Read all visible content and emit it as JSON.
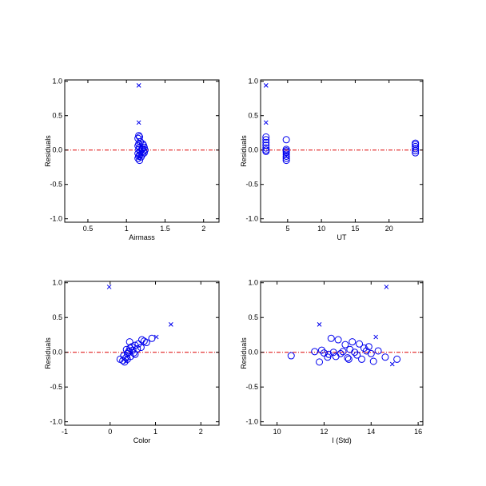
{
  "colors": {
    "marker": "#0000ee",
    "zero_line": "#dd0000",
    "axes": "#000000",
    "background": "#ffffff"
  },
  "chart_data": [
    {
      "type": "scatter",
      "xlabel": "Airmass",
      "ylabel": "Residuals",
      "xlim": [
        0.2,
        2.2
      ],
      "ylim": [
        -1.05,
        1.02
      ],
      "xticks": [
        0.5,
        1.0,
        1.5,
        2.0
      ],
      "yticks": [
        1.0,
        0.5,
        0.0,
        -0.5,
        -1.0
      ],
      "zero_line": 0.0,
      "circles": [
        [
          1.16,
          0.21
        ],
        [
          1.17,
          0.19
        ],
        [
          1.15,
          0.17
        ],
        [
          1.18,
          0.12
        ],
        [
          1.16,
          0.09
        ],
        [
          1.15,
          0.06
        ],
        [
          1.17,
          0.04
        ],
        [
          1.16,
          0.01
        ],
        [
          1.18,
          -0.02
        ],
        [
          1.15,
          -0.05
        ],
        [
          1.17,
          -0.07
        ],
        [
          1.16,
          -0.09
        ],
        [
          1.15,
          -0.12
        ],
        [
          1.17,
          -0.15
        ],
        [
          1.21,
          0.09
        ],
        [
          1.22,
          0.07
        ],
        [
          1.23,
          0.04
        ],
        [
          1.21,
          0.02
        ],
        [
          1.24,
          0.0
        ],
        [
          1.22,
          -0.02
        ],
        [
          1.23,
          -0.04
        ],
        [
          1.21,
          -0.06
        ],
        [
          1.2,
          0.01
        ],
        [
          1.19,
          -0.1
        ]
      ],
      "crosses": [
        [
          1.16,
          0.94
        ],
        [
          1.16,
          0.4
        ],
        [
          1.17,
          -0.1
        ]
      ]
    },
    {
      "type": "scatter",
      "xlabel": "UT",
      "ylabel": "Residuals",
      "xlim": [
        1.0,
        25.0
      ],
      "ylim": [
        -1.05,
        1.02
      ],
      "xticks": [
        5,
        10,
        15,
        20
      ],
      "yticks": [
        1.0,
        0.5,
        0.0,
        -0.5,
        -1.0
      ],
      "zero_line": 0.0,
      "circles": [
        [
          1.8,
          0.19
        ],
        [
          1.8,
          0.15
        ],
        [
          1.8,
          0.11
        ],
        [
          1.8,
          0.07
        ],
        [
          1.8,
          0.03
        ],
        [
          1.8,
          0.0
        ],
        [
          1.8,
          -0.02
        ],
        [
          4.8,
          0.15
        ],
        [
          4.8,
          0.01
        ],
        [
          4.8,
          -0.01
        ],
        [
          4.8,
          -0.03
        ],
        [
          4.8,
          -0.06
        ],
        [
          4.8,
          -0.09
        ],
        [
          4.8,
          -0.12
        ],
        [
          4.8,
          -0.15
        ],
        [
          23.9,
          0.1
        ],
        [
          23.9,
          0.08
        ],
        [
          23.9,
          0.05
        ],
        [
          23.9,
          0.02
        ],
        [
          23.9,
          -0.01
        ],
        [
          23.9,
          -0.04
        ]
      ],
      "crosses": [
        [
          1.8,
          0.94
        ],
        [
          1.8,
          0.4
        ],
        [
          4.8,
          -0.09
        ]
      ]
    },
    {
      "type": "scatter",
      "xlabel": "Color",
      "ylabel": "Residuals",
      "xlim": [
        -1.0,
        2.4
      ],
      "ylim": [
        -1.05,
        1.02
      ],
      "xticks": [
        -1,
        0,
        1,
        2
      ],
      "yticks": [
        1.0,
        0.5,
        0.0,
        -0.5,
        -1.0
      ],
      "zero_line": 0.0,
      "circles": [
        [
          0.22,
          -0.1
        ],
        [
          0.28,
          -0.12
        ],
        [
          0.32,
          -0.14
        ],
        [
          0.35,
          -0.08
        ],
        [
          0.3,
          -0.05
        ],
        [
          0.38,
          -0.02
        ],
        [
          0.4,
          0.0
        ],
        [
          0.42,
          0.02
        ],
        [
          0.36,
          0.04
        ],
        [
          0.44,
          0.06
        ],
        [
          0.48,
          0.08
        ],
        [
          0.5,
          0.03
        ],
        [
          0.45,
          -0.06
        ],
        [
          0.55,
          0.1
        ],
        [
          0.62,
          0.12
        ],
        [
          0.7,
          0.18
        ],
        [
          0.68,
          0.07
        ],
        [
          0.55,
          -0.03
        ],
        [
          0.6,
          0.05
        ],
        [
          0.8,
          0.14
        ],
        [
          0.92,
          0.2
        ],
        [
          0.75,
          0.16
        ],
        [
          0.43,
          0.15
        ],
        [
          0.52,
          -0.01
        ],
        [
          0.38,
          -0.1
        ]
      ],
      "crosses": [
        [
          -0.02,
          0.94
        ],
        [
          1.34,
          0.4
        ],
        [
          1.02,
          0.22
        ],
        [
          0.35,
          -0.13
        ]
      ]
    },
    {
      "type": "scatter",
      "xlabel": "I (Std)",
      "ylabel": "Residuals",
      "xlim": [
        9.3,
        16.2
      ],
      "ylim": [
        -1.05,
        1.02
      ],
      "xticks": [
        10,
        12,
        14,
        16
      ],
      "yticks": [
        1.0,
        0.5,
        0.0,
        -0.5,
        -1.0
      ],
      "zero_line": 0.0,
      "circles": [
        [
          10.6,
          -0.05
        ],
        [
          11.6,
          0.01
        ],
        [
          11.8,
          -0.14
        ],
        [
          11.9,
          0.03
        ],
        [
          12.0,
          -0.01
        ],
        [
          12.2,
          -0.03
        ],
        [
          12.3,
          0.2
        ],
        [
          12.4,
          0.0
        ],
        [
          12.5,
          -0.06
        ],
        [
          12.6,
          0.18
        ],
        [
          12.7,
          -0.02
        ],
        [
          12.8,
          0.01
        ],
        [
          12.9,
          0.11
        ],
        [
          13.0,
          -0.08
        ],
        [
          13.1,
          0.04
        ],
        [
          13.2,
          0.15
        ],
        [
          13.3,
          0.0
        ],
        [
          13.4,
          -0.04
        ],
        [
          13.5,
          0.12
        ],
        [
          13.6,
          -0.1
        ],
        [
          13.7,
          0.06
        ],
        [
          13.8,
          0.02
        ],
        [
          13.9,
          0.08
        ],
        [
          14.0,
          -0.02
        ],
        [
          14.1,
          -0.13
        ],
        [
          14.3,
          0.02
        ],
        [
          14.6,
          -0.07
        ],
        [
          15.1,
          -0.1
        ],
        [
          13.05,
          -0.1
        ],
        [
          12.15,
          -0.07
        ]
      ],
      "crosses": [
        [
          14.65,
          0.94
        ],
        [
          11.8,
          0.4
        ],
        [
          14.2,
          0.22
        ],
        [
          14.9,
          -0.17
        ]
      ]
    }
  ]
}
